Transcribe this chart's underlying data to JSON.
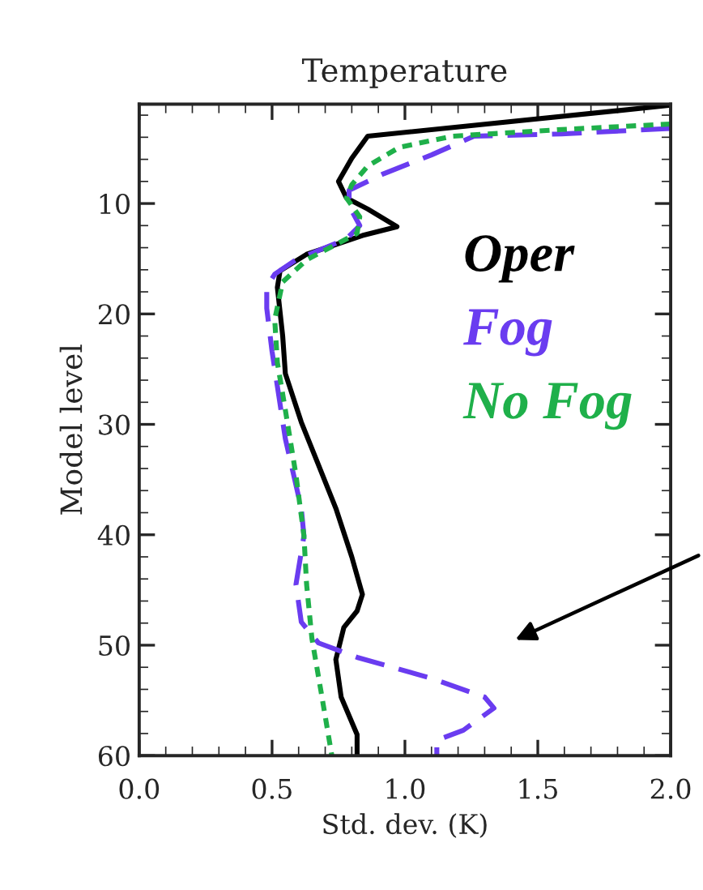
{
  "chart_data": {
    "type": "line",
    "title": "Temperature",
    "xlabel": "Std. dev. (K)",
    "ylabel": "Model level",
    "xlim": [
      0,
      2
    ],
    "xticks": [
      {
        "value": 0,
        "label": "0.0"
      },
      {
        "value": 0.5,
        "label": "0.5"
      },
      {
        "value": 1,
        "label": "1.0"
      },
      {
        "value": 1.5,
        "label": "1.5"
      },
      {
        "value": 2,
        "label": "2.0"
      }
    ],
    "ylim": [
      60,
      1
    ],
    "yticks": [
      10,
      20,
      30,
      40,
      50,
      60
    ],
    "grid": false,
    "legend": "right",
    "series": [
      {
        "name": "Oper",
        "color": "#000000",
        "line_style": "solid",
        "x": [
          2.0,
          0.86,
          0.8,
          0.75,
          0.78,
          0.86,
          0.97,
          0.84,
          0.63,
          0.53,
          0.52,
          0.54,
          0.55,
          0.61,
          0.675,
          0.74,
          0.8,
          0.84,
          0.82,
          0.77,
          0.74,
          0.76,
          0.82,
          0.82
        ],
        "values": [
          1.1,
          3.9,
          5.9,
          8.0,
          9.5,
          10.5,
          12.1,
          12.9,
          14.6,
          16.1,
          17.6,
          22.0,
          25.4,
          29.8,
          33.7,
          37.6,
          42.0,
          45.4,
          46.9,
          48.4,
          51.3,
          54.7,
          58.1,
          60
        ]
      },
      {
        "name": "Fog",
        "color": "#6a3cf0",
        "line_style": "dashed",
        "x": [
          2.0,
          1.59,
          1.26,
          1.1,
          0.92,
          0.79,
          0.79,
          0.83,
          0.78,
          0.59,
          0.51,
          0.48,
          0.48,
          0.5,
          0.55,
          0.61,
          0.62,
          0.59,
          0.61,
          0.675,
          0.82,
          1.1,
          1.3,
          1.335,
          1.22,
          1.12,
          1.12
        ],
        "values": [
          3.2,
          3.7,
          3.9,
          5.6,
          7.3,
          8.8,
          10.2,
          12.0,
          13.2,
          15.1,
          16.4,
          17.6,
          19.5,
          23.4,
          31.3,
          37.6,
          40.1,
          44.5,
          47.9,
          49.8,
          51.1,
          53.0,
          54.7,
          55.7,
          57.7,
          58.6,
          60
        ]
      },
      {
        "name": "No Fog",
        "color": "#1fb04a",
        "line_style": "dotted",
        "x": [
          2.0,
          1.59,
          1.18,
          0.98,
          0.86,
          0.8,
          0.78,
          0.83,
          0.82,
          0.63,
          0.54,
          0.51,
          0.52,
          0.55,
          0.59,
          0.62,
          0.63,
          0.65,
          0.685,
          0.725
        ],
        "values": [
          2.8,
          3.3,
          3.9,
          4.9,
          6.6,
          8.3,
          9.5,
          11.2,
          12.7,
          15.1,
          17.1,
          20.5,
          24.4,
          28.7,
          34.6,
          40.1,
          44.5,
          49.4,
          54.3,
          60
        ]
      }
    ]
  }
}
